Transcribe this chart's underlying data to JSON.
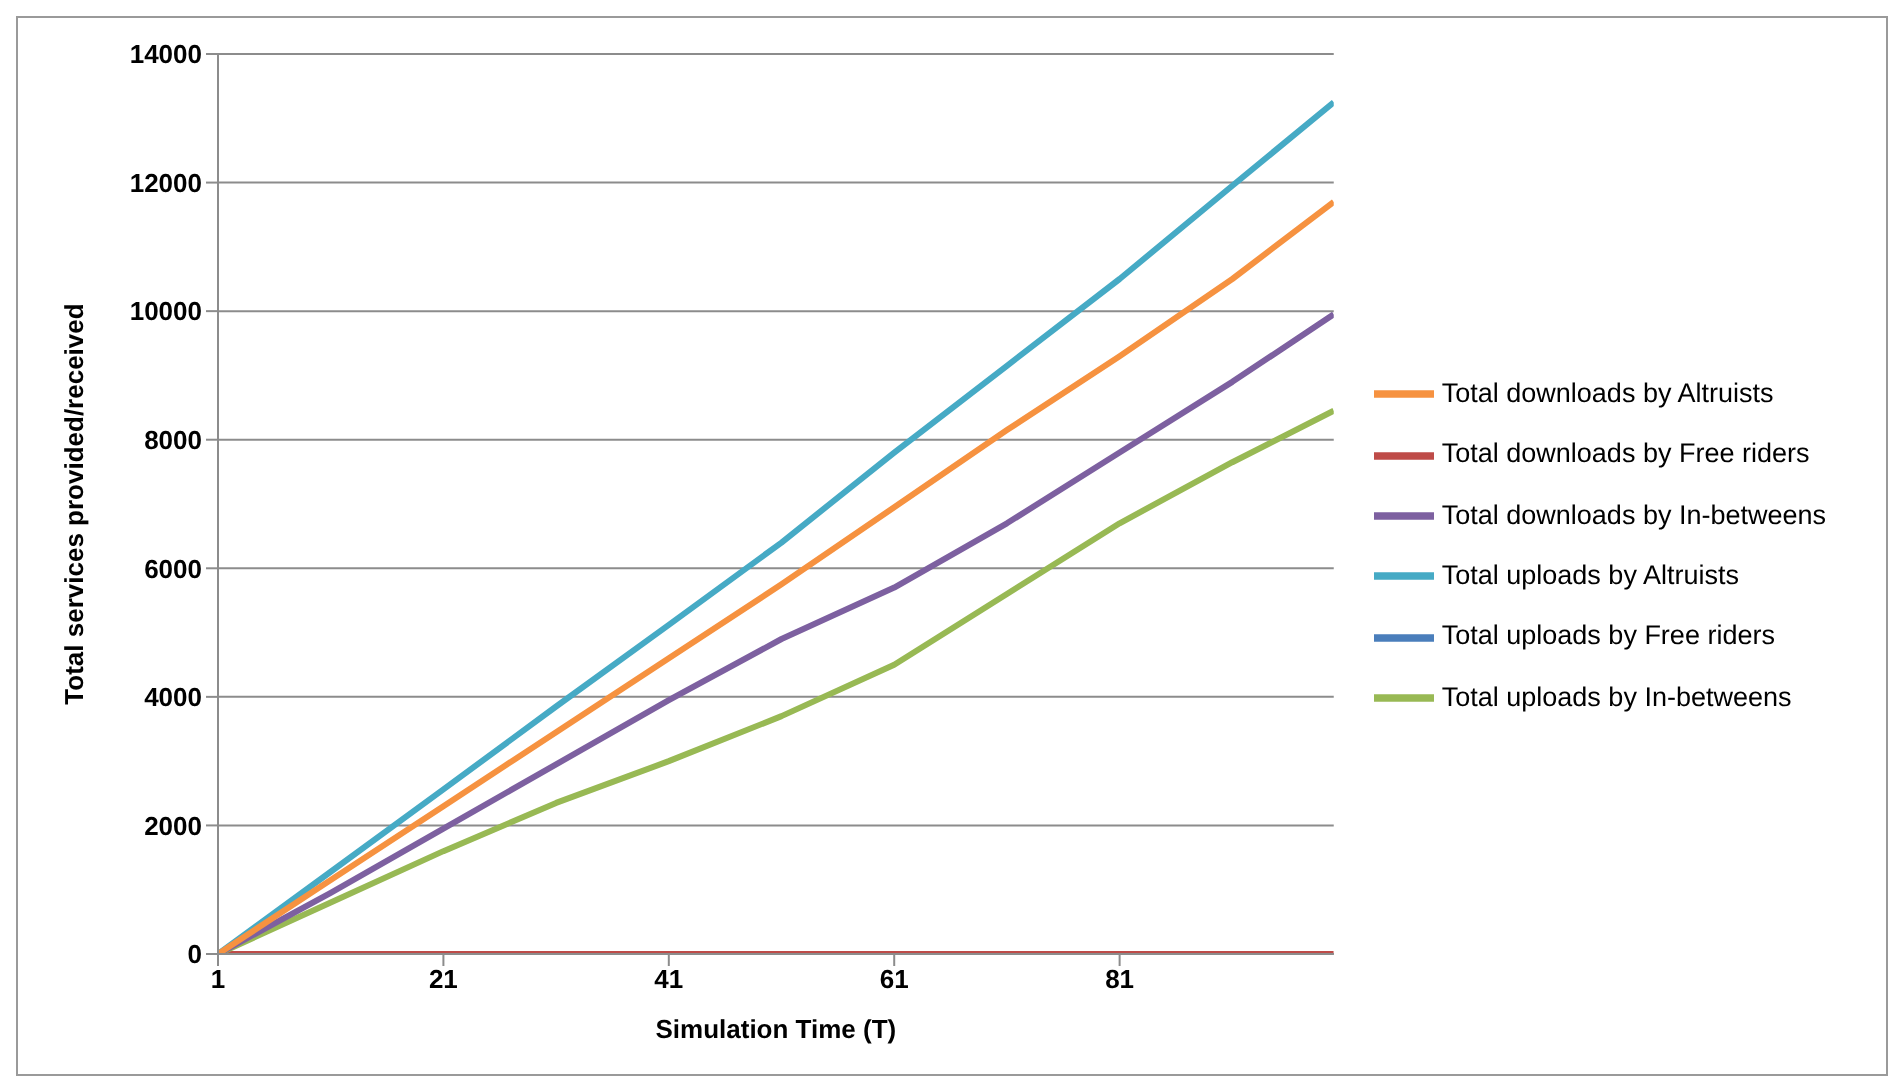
{
  "chart_data": {
    "type": "line",
    "xlabel": "Simulation Time (T)",
    "ylabel": "Total services provided/received",
    "x": [
      1,
      11,
      21,
      31,
      41,
      51,
      61,
      71,
      81,
      91,
      100
    ],
    "xlim": [
      1,
      100
    ],
    "xticks": [
      1,
      21,
      41,
      61,
      81
    ],
    "ylim": [
      0,
      14000
    ],
    "yticks": [
      0,
      2000,
      4000,
      6000,
      8000,
      10000,
      12000,
      14000
    ],
    "grid": "y",
    "legend": "right",
    "line_style": "solid",
    "series": [
      {
        "name": "Total uploads by Free riders",
        "color": "#4a7ebb",
        "values": [
          null,
          null,
          null,
          null,
          null,
          null,
          null,
          null,
          null,
          null,
          null
        ]
      },
      {
        "name": "Total downloads by Free riders",
        "color": "#be4b48",
        "values": [
          0,
          0,
          0,
          0,
          0,
          0,
          0,
          0,
          0,
          0,
          0
        ]
      },
      {
        "name": "Total uploads by In-betweens",
        "color": "#98b954",
        "values": [
          0,
          800,
          1600,
          2350,
          3000,
          3700,
          4500,
          5600,
          6700,
          7650,
          8450
        ]
      },
      {
        "name": "Total downloads by In-betweens",
        "color": "#7d60a0",
        "values": [
          0,
          950,
          1950,
          2950,
          3950,
          4900,
          5700,
          6700,
          7800,
          8900,
          9950
        ]
      },
      {
        "name": "Total uploads by Altruists",
        "color": "#46aac5",
        "values": [
          0,
          1280,
          2560,
          3850,
          5120,
          6400,
          7800,
          9150,
          10500,
          11950,
          13250
        ]
      },
      {
        "name": "Total downloads by Altruists",
        "color": "#f69240",
        "values": [
          0,
          1150,
          2300,
          3450,
          4600,
          5750,
          6950,
          8150,
          9300,
          10500,
          11700
        ]
      }
    ]
  }
}
